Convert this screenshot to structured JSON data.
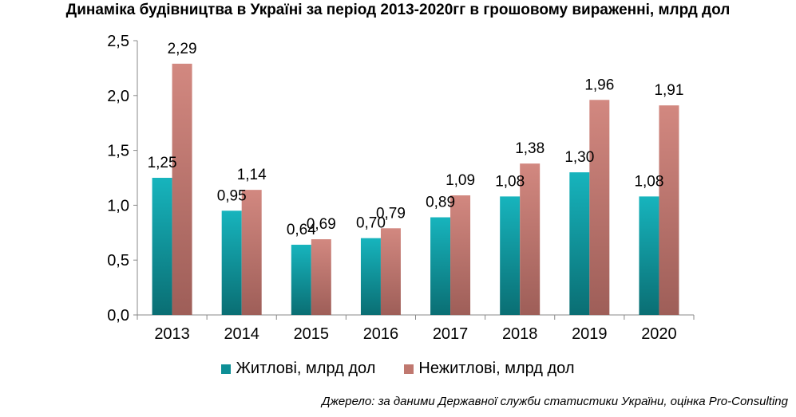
{
  "title": "Динаміка будівництва в Україні за період 2013-2020гг в грошовому вираженні, млрд дол",
  "source": "Джерело: за даними Державної служби статистики України, оцінка Pro-Consulting",
  "colors": {
    "residential": "#0e8f96",
    "nonresidential": "#c0786f"
  },
  "chart_data": {
    "type": "bar",
    "categories": [
      "2013",
      "2014",
      "2015",
      "2016",
      "2017",
      "2018",
      "2019",
      "2020"
    ],
    "series": [
      {
        "name": "Житлові, млрд дол",
        "values": [
          1.25,
          0.95,
          0.64,
          0.7,
          0.89,
          1.08,
          1.3,
          1.08
        ],
        "labels": [
          "1,25",
          "0,95",
          "0,64",
          "0,70",
          "0,89",
          "1,08",
          "1,30",
          "1,08"
        ]
      },
      {
        "name": "Нежитлові, млрд дол",
        "values": [
          2.29,
          1.14,
          0.69,
          0.79,
          1.09,
          1.38,
          1.96,
          1.91
        ],
        "labels": [
          "2,29",
          "1,14",
          "0,69",
          "0,79",
          "1,09",
          "1,38",
          "1,96",
          "1,91"
        ]
      }
    ],
    "ylim": [
      0,
      2.5
    ],
    "yticks": [
      0,
      0.5,
      1.0,
      1.5,
      2.0,
      2.5
    ],
    "ytick_labels": [
      "0,0",
      "0,5",
      "1,0",
      "1,5",
      "2,0",
      "2,5"
    ],
    "legend_position": "bottom",
    "grid": false
  }
}
